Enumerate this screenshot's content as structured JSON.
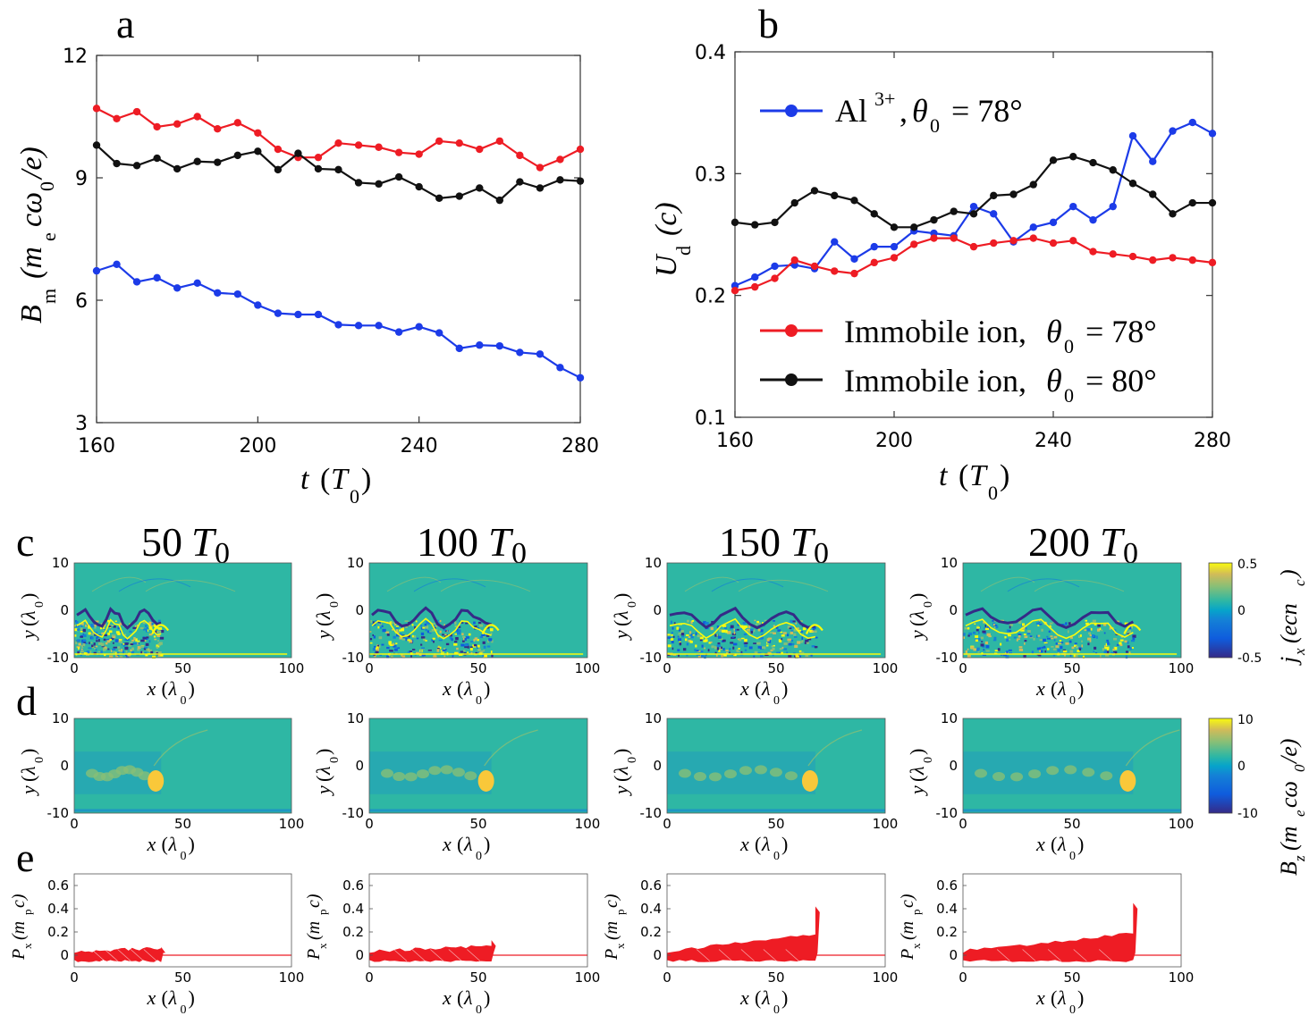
{
  "panel_labels": {
    "a": "a",
    "b": "b",
    "c": "c",
    "d": "d",
    "e": "e"
  },
  "units": {
    "T0": "T",
    "lambda0": "λ",
    "sub0": "0"
  },
  "chart_data": [
    {
      "id": "a",
      "type": "line",
      "title": "",
      "xlabel": "t",
      "ylabel": "B",
      "ylabel_sub": "m",
      "ylabel_unit": "(m",
      "ylabel_rest": "cω",
      "ylabel_sub2": "e",
      "ylabel_sub3": "0",
      "ylabel_end": "/e)",
      "xlim": [
        160,
        280
      ],
      "ylim": [
        3,
        12
      ],
      "xticks": [
        160,
        200,
        240,
        280
      ],
      "yticks": [
        3,
        6,
        9,
        12
      ],
      "x": [
        160,
        165,
        170,
        175,
        180,
        185,
        190,
        195,
        200,
        205,
        210,
        215,
        220,
        225,
        230,
        235,
        240,
        245,
        250,
        255,
        260,
        265,
        270,
        275,
        280
      ],
      "series": [
        {
          "name": "red",
          "color": "#ee1c24",
          "values": [
            10.7,
            10.45,
            10.62,
            10.25,
            10.32,
            10.5,
            10.2,
            10.35,
            10.1,
            9.7,
            9.5,
            9.5,
            9.85,
            9.8,
            9.75,
            9.62,
            9.58,
            9.9,
            9.85,
            9.7,
            9.9,
            9.55,
            9.25,
            9.45,
            9.7
          ]
        },
        {
          "name": "black",
          "color": "#111111",
          "values": [
            9.8,
            9.35,
            9.3,
            9.48,
            9.22,
            9.4,
            9.38,
            9.55,
            9.65,
            9.2,
            9.6,
            9.22,
            9.2,
            8.88,
            8.85,
            9.02,
            8.78,
            8.5,
            8.55,
            8.75,
            8.45,
            8.9,
            8.75,
            8.95,
            8.92
          ]
        },
        {
          "name": "blue",
          "color": "#1c3be8",
          "values": [
            6.72,
            6.88,
            6.45,
            6.55,
            6.3,
            6.42,
            6.18,
            6.15,
            5.88,
            5.68,
            5.65,
            5.65,
            5.4,
            5.38,
            5.38,
            5.22,
            5.35,
            5.2,
            4.82,
            4.9,
            4.88,
            4.72,
            4.68,
            4.35,
            4.1
          ]
        }
      ]
    },
    {
      "id": "b",
      "type": "line",
      "title": "",
      "xlabel": "t",
      "ylabel": "U",
      "ylabel_sub": "d",
      "ylabel_unit": "(c)",
      "xlim": [
        160,
        280
      ],
      "ylim": [
        0.1,
        0.4
      ],
      "xticks": [
        160,
        200,
        240,
        280
      ],
      "yticks": [
        0.1,
        0.2,
        0.3,
        0.4
      ],
      "ytick_labels": [
        "0.1",
        "0.2",
        "0.3",
        "0.4"
      ],
      "x": [
        160,
        165,
        170,
        175,
        180,
        185,
        190,
        195,
        200,
        205,
        210,
        215,
        220,
        225,
        230,
        235,
        240,
        245,
        250,
        255,
        260,
        265,
        270,
        275,
        280
      ],
      "series": [
        {
          "name": "Al3+",
          "color": "#1c3be8",
          "legend_main": "Al",
          "legend_sup": "3+",
          "legend_theta": "θ",
          "legend_sub": "0",
          "legend_eq": "= 78°",
          "values": [
            0.208,
            0.215,
            0.224,
            0.225,
            0.222,
            0.244,
            0.23,
            0.24,
            0.24,
            0.253,
            0.251,
            0.249,
            0.273,
            0.267,
            0.244,
            0.256,
            0.26,
            0.273,
            0.262,
            0.273,
            0.331,
            0.31,
            0.335,
            0.342,
            0.333
          ]
        },
        {
          "name": "Immobile ion 78",
          "color": "#ee1c24",
          "legend_main": "Immobile ion,",
          "legend_theta": "θ",
          "legend_sub": "0",
          "legend_eq": "= 78°",
          "values": [
            0.204,
            0.207,
            0.214,
            0.229,
            0.224,
            0.22,
            0.218,
            0.227,
            0.231,
            0.242,
            0.247,
            0.247,
            0.24,
            0.243,
            0.245,
            0.247,
            0.243,
            0.245,
            0.236,
            0.234,
            0.232,
            0.229,
            0.231,
            0.229,
            0.227
          ]
        },
        {
          "name": "Immobile ion 80",
          "color": "#111111",
          "legend_main": "Immobile ion,",
          "legend_theta": "θ",
          "legend_sub": "0",
          "legend_eq": "= 80°",
          "values": [
            0.26,
            0.258,
            0.26,
            0.276,
            0.286,
            0.282,
            0.278,
            0.267,
            0.256,
            0.256,
            0.262,
            0.269,
            0.267,
            0.282,
            0.283,
            0.291,
            0.311,
            0.314,
            0.309,
            0.303,
            0.292,
            0.283,
            0.267,
            0.276,
            0.276
          ]
        }
      ]
    },
    {
      "id": "c",
      "type": "heatmap",
      "times": [
        "50",
        "100",
        "150",
        "200"
      ],
      "fronts": [
        40,
        56,
        68,
        78
      ],
      "xlim": [
        0,
        100
      ],
      "ylim": [
        -10,
        10
      ],
      "xticks": [
        "0",
        "50",
        "100"
      ],
      "yticks": [
        "10",
        "0",
        "-10"
      ],
      "xlabel": "x",
      "ylabel": "y",
      "colorbar": {
        "ticks": [
          "0.5",
          "0",
          "-0.5"
        ],
        "label_main": "j",
        "label_sub": "x",
        "label_rest": "(ecn",
        "label_sub2": "c",
        "label_end": ")"
      }
    },
    {
      "id": "d",
      "type": "heatmap",
      "fronts": [
        40,
        56,
        68,
        78
      ],
      "xlim": [
        0,
        100
      ],
      "ylim": [
        -10,
        10
      ],
      "xticks": [
        "0",
        "50",
        "100"
      ],
      "yticks": [
        "10",
        "0",
        "-10"
      ],
      "xlabel": "x",
      "ylabel": "y",
      "colorbar": {
        "ticks": [
          "10",
          "0",
          "-10"
        ],
        "label_main": "B",
        "label_sub": "z",
        "label_rest": "(m",
        "label_sub2": "e",
        "label_mid": "cω",
        "label_sub3": "0",
        "label_end": "/e)"
      }
    },
    {
      "id": "e",
      "type": "scatter",
      "color": "#ee1c24",
      "fronts": [
        40,
        56,
        68,
        78
      ],
      "peaks": [
        0.07,
        0.13,
        0.42,
        0.45
      ],
      "xlim": [
        0,
        100
      ],
      "ylim": [
        -0.1,
        0.7
      ],
      "xticks": [
        "0",
        "50",
        "100"
      ],
      "yticks": [
        "0.6",
        "0.4",
        "0.2",
        "0"
      ],
      "xlabel": "x",
      "ylabel": "P",
      "ylabel_sub": "x",
      "ylabel_rest": "(m",
      "ylabel_sub2": "p",
      "ylabel_end": "c)"
    }
  ]
}
